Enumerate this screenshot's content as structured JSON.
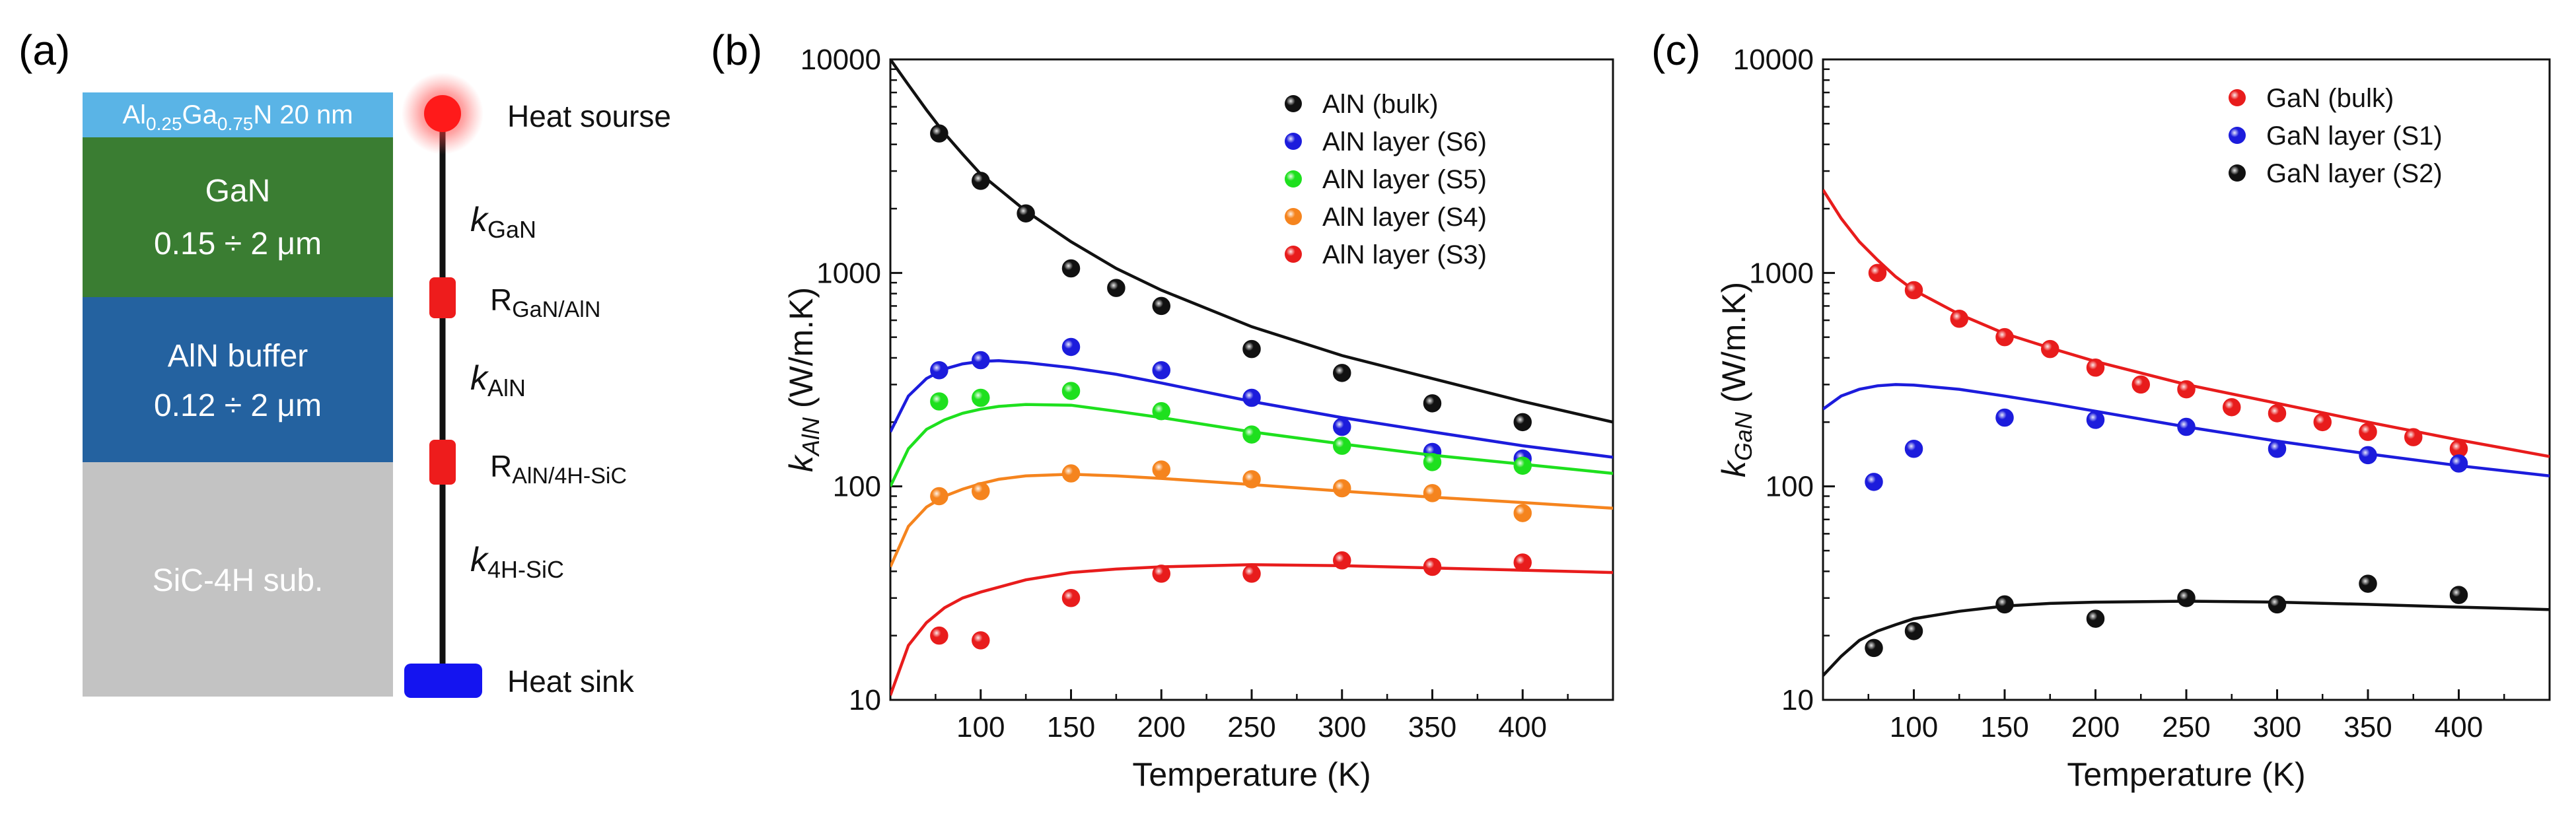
{
  "panels": {
    "a": {
      "label": "(a)",
      "layers": [
        {
          "id": "top",
          "color": "#5ab4e6"
        },
        {
          "id": "gan",
          "line1": "GaN",
          "line2": "0.15 ÷ 2 μm",
          "color": "#3a7d32"
        },
        {
          "id": "aln",
          "line1": "AlN buffer",
          "line2": "0.12 ÷ 2 μm",
          "color": "#2462a0"
        },
        {
          "id": "sic",
          "line1": "SiC-4H sub.",
          "color": "#c3c3c3"
        }
      ],
      "top_layer_label": {
        "al": "Al",
        "al_sub": "0.25",
        "ga": "Ga",
        "ga_sub": "0.75",
        "rest": "N 20 nm"
      },
      "heat_source": "Heat sourse",
      "heat_sink": "Heat sink",
      "k_gan": {
        "k": "k",
        "sub": "GaN"
      },
      "k_aln": {
        "k": "k",
        "sub": "AlN"
      },
      "k_sic": {
        "k": "k",
        "sub": "4H-SiC"
      },
      "r_gan_aln": {
        "r": "R",
        "sub": "GaN/AlN"
      },
      "r_aln_sic": {
        "r": "R",
        "sub": "AlN/4H-SiC"
      },
      "colors": {
        "source": "#ff1a1a",
        "resistor": "#ee1c1c",
        "sink": "#1414f0",
        "line": "#111111"
      }
    },
    "b_label": "(b)",
    "c_label": "(c)"
  },
  "chart_data": [
    {
      "type": "scatter",
      "xlabel": "Temperature (K)",
      "ylabel": {
        "k": "k",
        "sub": "AlN",
        "rest": " (W/m.K)"
      },
      "xlim": [
        50,
        450
      ],
      "ylim": [
        10,
        10000
      ],
      "yscale": "log",
      "xticks": [
        100,
        150,
        200,
        250,
        300,
        350,
        400
      ],
      "yticks": [
        10,
        100,
        1000,
        10000
      ],
      "legend_position": "top-right",
      "series": [
        {
          "name": "AlN (bulk)",
          "color": "#111111",
          "points": [
            [
              77,
              4500
            ],
            [
              100,
              2700
            ],
            [
              125,
              1900
            ],
            [
              150,
              1050
            ],
            [
              175,
              850
            ],
            [
              200,
              700
            ],
            [
              250,
              440
            ],
            [
              300,
              340
            ],
            [
              350,
              245
            ],
            [
              400,
              200
            ]
          ],
          "curve": [
            [
              50,
              10000
            ],
            [
              60,
              7600
            ],
            [
              70,
              5800
            ],
            [
              80,
              4500
            ],
            [
              90,
              3600
            ],
            [
              100,
              2900
            ],
            [
              125,
              1950
            ],
            [
              150,
              1400
            ],
            [
              175,
              1050
            ],
            [
              200,
              830
            ],
            [
              250,
              560
            ],
            [
              300,
              410
            ],
            [
              350,
              320
            ],
            [
              400,
              250
            ],
            [
              450,
              200
            ]
          ]
        },
        {
          "name": "AlN layer (S6)",
          "color": "#1c1cdc",
          "points": [
            [
              77,
              350
            ],
            [
              100,
              390
            ],
            [
              150,
              450
            ],
            [
              200,
              350
            ],
            [
              250,
              260
            ],
            [
              300,
              190
            ],
            [
              350,
              145
            ],
            [
              400,
              135
            ]
          ],
          "curve": [
            [
              50,
              180
            ],
            [
              60,
              265
            ],
            [
              70,
              320
            ],
            [
              80,
              355
            ],
            [
              90,
              375
            ],
            [
              100,
              385
            ],
            [
              110,
              388
            ],
            [
              125,
              380
            ],
            [
              150,
              360
            ],
            [
              175,
              335
            ],
            [
              200,
              305
            ],
            [
              250,
              250
            ],
            [
              300,
              210
            ],
            [
              350,
              180
            ],
            [
              400,
              155
            ],
            [
              450,
              137
            ]
          ]
        },
        {
          "name": "AlN layer (S5)",
          "color": "#1ee01e",
          "points": [
            [
              77,
              250
            ],
            [
              100,
              260
            ],
            [
              150,
              280
            ],
            [
              200,
              225
            ],
            [
              250,
              175
            ],
            [
              300,
              155
            ],
            [
              350,
              130
            ],
            [
              400,
              125
            ]
          ],
          "curve": [
            [
              50,
              100
            ],
            [
              60,
              150
            ],
            [
              70,
              185
            ],
            [
              80,
              205
            ],
            [
              90,
              220
            ],
            [
              100,
              230
            ],
            [
              110,
              237
            ],
            [
              125,
              242
            ],
            [
              150,
              240
            ],
            [
              175,
              225
            ],
            [
              200,
              210
            ],
            [
              250,
              180
            ],
            [
              300,
              158
            ],
            [
              350,
              140
            ],
            [
              400,
              127
            ],
            [
              450,
              115
            ]
          ]
        },
        {
          "name": "AlN layer (S4)",
          "color": "#f5841e",
          "points": [
            [
              77,
              90
            ],
            [
              100,
              95
            ],
            [
              150,
              115
            ],
            [
              200,
              120
            ],
            [
              250,
              108
            ],
            [
              300,
              98
            ],
            [
              350,
              93
            ],
            [
              400,
              75
            ]
          ],
          "curve": [
            [
              50,
              42
            ],
            [
              60,
              65
            ],
            [
              70,
              80
            ],
            [
              80,
              90
            ],
            [
              90,
              97
            ],
            [
              100,
              103
            ],
            [
              110,
              108
            ],
            [
              125,
              112
            ],
            [
              150,
              114
            ],
            [
              175,
              112
            ],
            [
              200,
              109
            ],
            [
              250,
              102
            ],
            [
              300,
              95
            ],
            [
              350,
              89
            ],
            [
              400,
              84
            ],
            [
              450,
              79
            ]
          ]
        },
        {
          "name": "AlN layer (S3)",
          "color": "#e81c1c",
          "points": [
            [
              77,
              20
            ],
            [
              100,
              19
            ],
            [
              150,
              30
            ],
            [
              200,
              39
            ],
            [
              250,
              39
            ],
            [
              300,
              45
            ],
            [
              350,
              42
            ],
            [
              400,
              44
            ]
          ],
          "curve": [
            [
              50,
              10.5
            ],
            [
              60,
              18
            ],
            [
              70,
              23
            ],
            [
              80,
              27
            ],
            [
              90,
              30
            ],
            [
              100,
              32
            ],
            [
              125,
              36.5
            ],
            [
              150,
              39.5
            ],
            [
              175,
              41
            ],
            [
              200,
              42
            ],
            [
              250,
              43
            ],
            [
              300,
              42.5
            ],
            [
              350,
              41.5
            ],
            [
              400,
              40.5
            ],
            [
              450,
              39.5
            ]
          ]
        }
      ]
    },
    {
      "type": "scatter",
      "xlabel": "Temperature (K)",
      "ylabel": {
        "k": "k",
        "sub": "GaN",
        "rest": " (W/m.K)"
      },
      "xlim": [
        50,
        450
      ],
      "ylim": [
        10,
        10000
      ],
      "yscale": "log",
      "xticks": [
        100,
        150,
        200,
        250,
        300,
        350,
        400
      ],
      "yticks": [
        10,
        100,
        1000,
        10000
      ],
      "legend_position": "top-right",
      "series": [
        {
          "name": "GaN (bulk)",
          "color": "#e81c1c",
          "points": [
            [
              80,
              1000
            ],
            [
              100,
              830
            ],
            [
              125,
              610
            ],
            [
              150,
              500
            ],
            [
              175,
              440
            ],
            [
              200,
              360
            ],
            [
              225,
              300
            ],
            [
              250,
              285
            ],
            [
              275,
              235
            ],
            [
              300,
              220
            ],
            [
              325,
              200
            ],
            [
              350,
              180
            ],
            [
              375,
              170
            ],
            [
              400,
              150
            ]
          ],
          "curve": [
            [
              50,
              2450
            ],
            [
              60,
              1800
            ],
            [
              70,
              1400
            ],
            [
              80,
              1150
            ],
            [
              90,
              960
            ],
            [
              100,
              830
            ],
            [
              125,
              640
            ],
            [
              150,
              520
            ],
            [
              175,
              445
            ],
            [
              200,
              385
            ],
            [
              250,
              300
            ],
            [
              300,
              245
            ],
            [
              350,
              200
            ],
            [
              400,
              165
            ],
            [
              450,
              138
            ]
          ]
        },
        {
          "name": "GaN layer (S1)",
          "color": "#1c1cdc",
          "points": [
            [
              78,
              105
            ],
            [
              100,
              150
            ],
            [
              150,
              210
            ],
            [
              200,
              205
            ],
            [
              250,
              190
            ],
            [
              300,
              150
            ],
            [
              350,
              140
            ],
            [
              400,
              128
            ]
          ],
          "curve": [
            [
              50,
              230
            ],
            [
              60,
              265
            ],
            [
              70,
              285
            ],
            [
              80,
              296
            ],
            [
              90,
              300
            ],
            [
              100,
              298
            ],
            [
              125,
              285
            ],
            [
              150,
              265
            ],
            [
              175,
              245
            ],
            [
              200,
              225
            ],
            [
              250,
              190
            ],
            [
              300,
              163
            ],
            [
              350,
              142
            ],
            [
              400,
              125
            ],
            [
              450,
              112
            ]
          ]
        },
        {
          "name": "GaN layer (S2)",
          "color": "#111111",
          "points": [
            [
              78,
              17.5
            ],
            [
              100,
              21
            ],
            [
              150,
              28
            ],
            [
              200,
              24
            ],
            [
              250,
              30
            ],
            [
              300,
              28
            ],
            [
              350,
              35
            ],
            [
              400,
              31
            ]
          ],
          "curve": [
            [
              50,
              13
            ],
            [
              60,
              16
            ],
            [
              70,
              19
            ],
            [
              80,
              21
            ],
            [
              90,
              22.5
            ],
            [
              100,
              24
            ],
            [
              125,
              26
            ],
            [
              150,
              27.5
            ],
            [
              175,
              28.3
            ],
            [
              200,
              28.7
            ],
            [
              250,
              29
            ],
            [
              300,
              28.7
            ],
            [
              350,
              28
            ],
            [
              400,
              27.2
            ],
            [
              450,
              26.5
            ]
          ]
        }
      ]
    }
  ]
}
